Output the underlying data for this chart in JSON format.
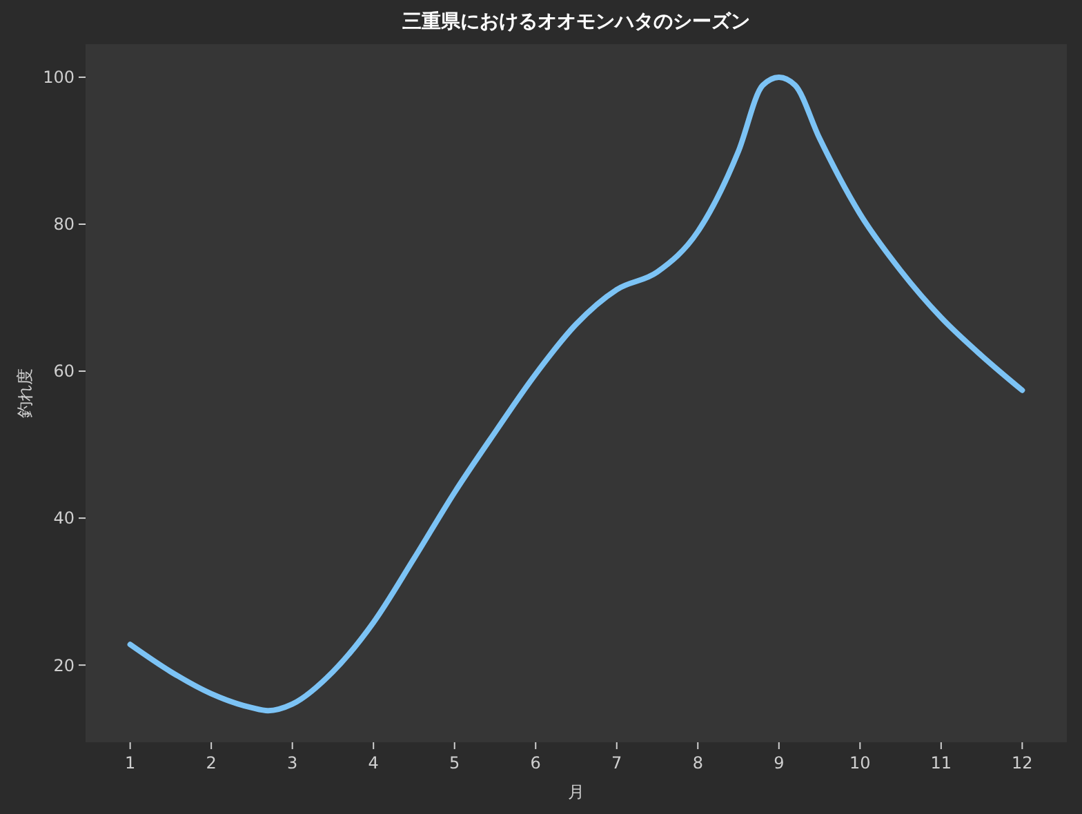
{
  "chart_data": {
    "type": "line",
    "title": "三重県におけるオオモンハタのシーズン",
    "xlabel": "月",
    "ylabel": "釣れ度",
    "x": [
      1,
      1.5,
      2,
      2.5,
      2.7,
      3,
      3.5,
      4,
      4.5,
      5,
      5.5,
      6,
      6.5,
      7,
      7.5,
      8,
      8.5,
      8.8,
      9,
      9.2,
      9.5,
      10,
      10.5,
      11,
      11.5,
      12
    ],
    "series": [
      {
        "color": "#7cc3f5",
        "values": [
          22.8,
          19.1,
          16.1,
          14.2,
          13.8,
          14.7,
          19.1,
          25.8,
          34.5,
          43.5,
          51.7,
          59.6,
          66.4,
          71.1,
          73.5,
          79,
          89.9,
          98.9,
          100,
          98.9,
          91.7,
          81.4,
          73.7,
          67.3,
          62.1,
          57.4
        ]
      }
    ],
    "xlim": [
      0.45,
      12.55
    ],
    "ylim": [
      9.5,
      104.5
    ],
    "xticks": [
      1,
      2,
      3,
      4,
      5,
      6,
      7,
      8,
      9,
      10,
      11,
      12
    ],
    "yticks": [
      20,
      40,
      60,
      80,
      100
    ],
    "grid": false,
    "marker": "none",
    "line_style": "solid"
  }
}
